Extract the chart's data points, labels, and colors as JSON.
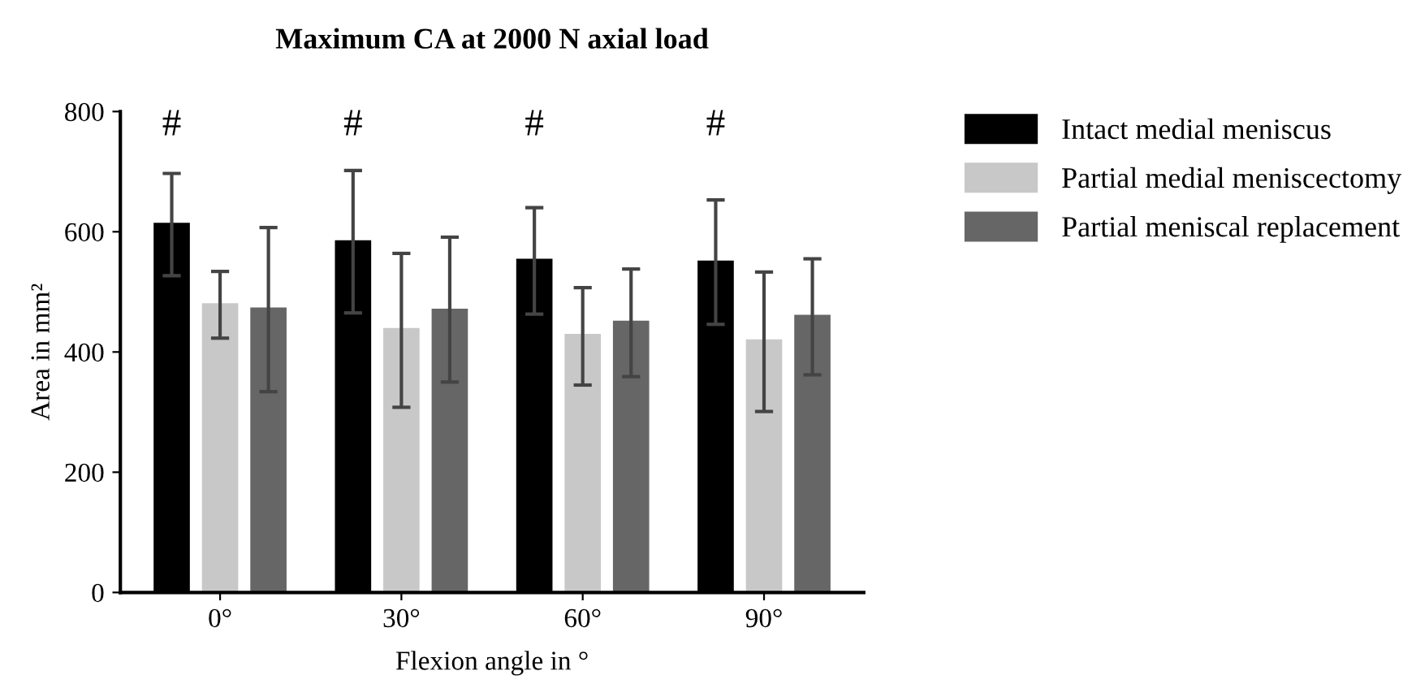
{
  "chart_data": {
    "type": "bar",
    "title": "Maximum CA at 2000 N axial load",
    "xlabel": "Flexion angle in °",
    "ylabel": "Area in mm²",
    "categories": [
      "0°",
      "30°",
      "60°",
      "90°"
    ],
    "series": [
      {
        "name": "Intact medial meniscus",
        "color": "#000000",
        "values": [
          615,
          586,
          555,
          552
        ],
        "errors": [
          [
            527,
            697
          ],
          [
            465,
            702
          ],
          [
            463,
            640
          ],
          [
            446,
            653
          ]
        ]
      },
      {
        "name": "Partial medial meniscectomy",
        "color": "#c8c8c8",
        "values": [
          481,
          440,
          430,
          421
        ],
        "errors": [
          [
            423,
            534
          ],
          [
            308,
            564
          ],
          [
            345,
            507
          ],
          [
            301,
            533
          ]
        ]
      },
      {
        "name": "Partial meniscal replacement",
        "color": "#666666",
        "values": [
          474,
          472,
          452,
          462
        ],
        "errors": [
          [
            334,
            607
          ],
          [
            350,
            591
          ],
          [
            359,
            538
          ],
          [
            362,
            555
          ]
        ]
      }
    ],
    "annotations": [
      "#",
      "#",
      "#",
      "#"
    ],
    "ylim": [
      0,
      800
    ],
    "yticks": [
      0,
      200,
      400,
      600,
      800
    ],
    "grid": false,
    "legend": "right"
  }
}
